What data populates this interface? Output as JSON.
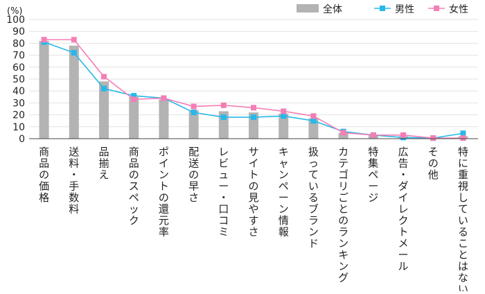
{
  "chart_data": {
    "type": "bar",
    "unit_label": "(%)",
    "ylim": [
      0,
      100
    ],
    "yticks": [
      0,
      10,
      20,
      30,
      40,
      50,
      60,
      70,
      80,
      90,
      100
    ],
    "categories": [
      "商品の価格",
      "送料・手数料",
      "品揃え",
      "商品のスペック",
      "ポイントの還元率",
      "配送の早さ",
      "レビュー・口コミ",
      "サイトの見やすさ",
      "キャンペーン情報",
      "扱っているブランド",
      "カテゴリごとのランキング",
      "特集ページ",
      "広告・ダイレクトメール",
      "その他",
      "特に重視していることはない"
    ],
    "series": [
      {
        "name": "全体",
        "kind": "bar",
        "color": "#b3b3b3",
        "values": [
          82,
          78,
          48,
          35,
          33,
          24,
          23,
          22,
          21,
          17,
          5,
          3,
          2,
          0.5,
          2
        ]
      },
      {
        "name": "男性",
        "kind": "line",
        "color": "#27b8ea",
        "values": [
          81,
          72,
          42,
          36,
          34,
          22,
          18,
          18,
          19,
          15,
          6,
          3,
          1,
          0.5,
          4.5
        ]
      },
      {
        "name": "女性",
        "kind": "line",
        "color": "#f47eb5",
        "values": [
          83,
          83,
          52,
          33,
          34,
          27,
          28,
          26,
          23,
          19,
          5,
          3,
          3,
          0.5,
          0.5
        ]
      }
    ]
  }
}
